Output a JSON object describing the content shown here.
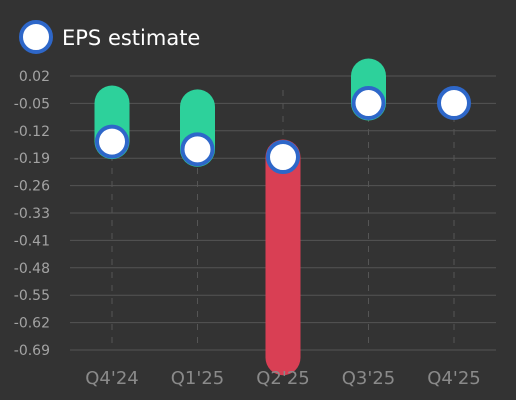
{
  "chart_data": {
    "type": "scatter",
    "title": "",
    "xlabel": "",
    "ylabel": "",
    "legend": {
      "position": "top-left",
      "entries": [
        {
          "label": "EPS estimate",
          "marker": "circle",
          "fill": "#ffffff",
          "stroke": "#2e67c9"
        }
      ]
    },
    "categories": [
      "Q4'24",
      "Q1'25",
      "Q2'25",
      "Q3'25",
      "Q4'25"
    ],
    "y_ticks": [
      "0.02",
      "-0.05",
      "-0.12",
      "-0.19",
      "-0.26",
      "-0.33",
      "-0.41",
      "-0.48",
      "-0.55",
      "-0.62",
      "-0.69"
    ],
    "ylim": [
      -0.69,
      0.02
    ],
    "grid": {
      "horizontal": true,
      "vertical": true,
      "vertical_style": "dashed"
    },
    "series": [
      {
        "name": "EPS estimate",
        "values": [
          -0.15,
          -0.17,
          -0.19,
          -0.05,
          -0.05
        ]
      }
    ],
    "actuals": [
      -0.05,
      -0.06,
      -0.71,
      0.02,
      null
    ],
    "colors": {
      "background": "#333333",
      "beat": "#2dd19b",
      "miss": "#d93f54",
      "marker_fill": "#ffffff",
      "marker_stroke": "#2e67c9",
      "gridline": "#555555",
      "y_tick_text": "#a3a3a3",
      "x_tick_text": "#8a8a8a",
      "legend_text": "#ffffff"
    }
  }
}
